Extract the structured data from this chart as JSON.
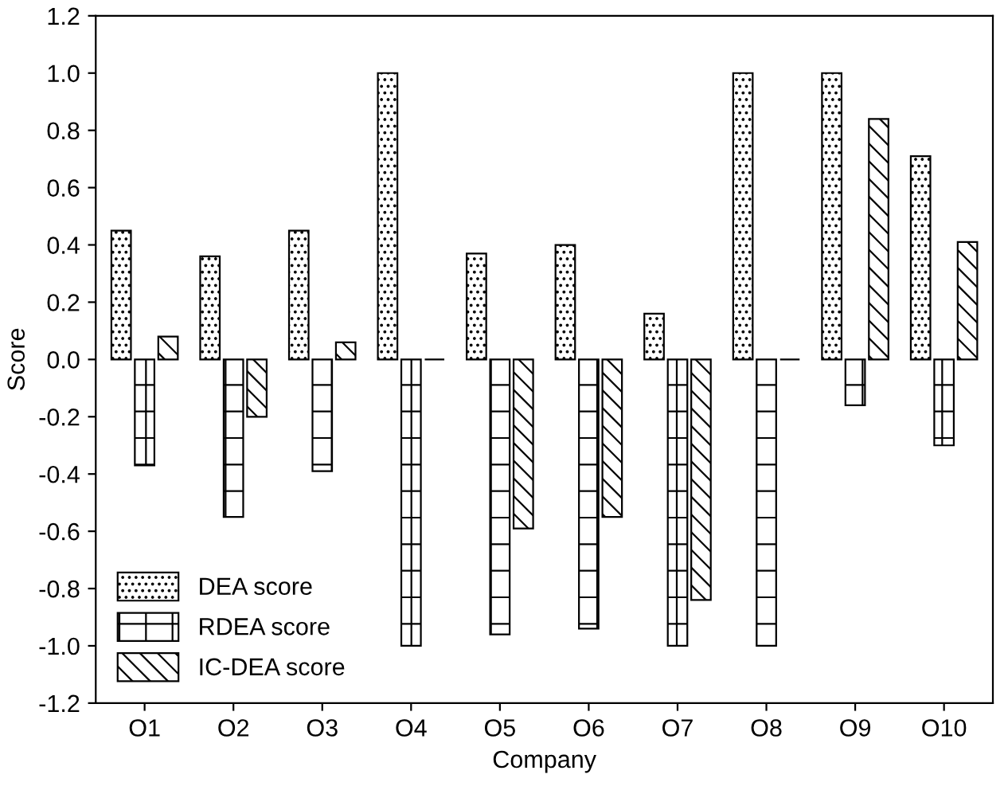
{
  "chart_data": {
    "type": "bar",
    "xlabel": "Company",
    "ylabel": "Score",
    "categories": [
      "O1",
      "O2",
      "O3",
      "O4",
      "O5",
      "O6",
      "O7",
      "O8",
      "O9",
      "O10"
    ],
    "series": [
      {
        "name": "DEA score",
        "color": "#000000",
        "values": [
          0.45,
          0.36,
          0.45,
          1.0,
          0.37,
          0.4,
          0.16,
          1.0,
          1.0,
          0.71
        ]
      },
      {
        "name": "RDEA score",
        "color": "#000000",
        "values": [
          -0.37,
          -0.55,
          -0.39,
          -1.0,
          -0.96,
          -0.94,
          -1.0,
          -1.0,
          -0.16,
          -0.3
        ]
      },
      {
        "name": "IC-DEA score",
        "color": "#000000",
        "values": [
          0.08,
          -0.2,
          0.06,
          0.0,
          -0.59,
          -0.55,
          -0.84,
          0.0,
          0.84,
          0.41
        ]
      }
    ],
    "ylim": [
      -1.2,
      1.2
    ],
    "yticks": [
      {
        "value": -1.2,
        "label": "-1.2"
      },
      {
        "value": -1.0,
        "label": "-1.0"
      },
      {
        "value": -0.8,
        "label": "-0.8"
      },
      {
        "value": -0.6,
        "label": "-0.6"
      },
      {
        "value": -0.4,
        "label": "-0.4"
      },
      {
        "value": -0.2,
        "label": "-0.2"
      },
      {
        "value": 0.0,
        "label": "0.0"
      },
      {
        "value": 0.2,
        "label": "0.2"
      },
      {
        "value": 0.4,
        "label": "0.4"
      },
      {
        "value": 0.6,
        "label": "0.6"
      },
      {
        "value": 0.8,
        "label": "0.8"
      },
      {
        "value": 1.0,
        "label": "1.0"
      },
      {
        "value": 1.2,
        "label": "1.2"
      }
    ],
    "grid": false,
    "legend": "bottom left"
  }
}
